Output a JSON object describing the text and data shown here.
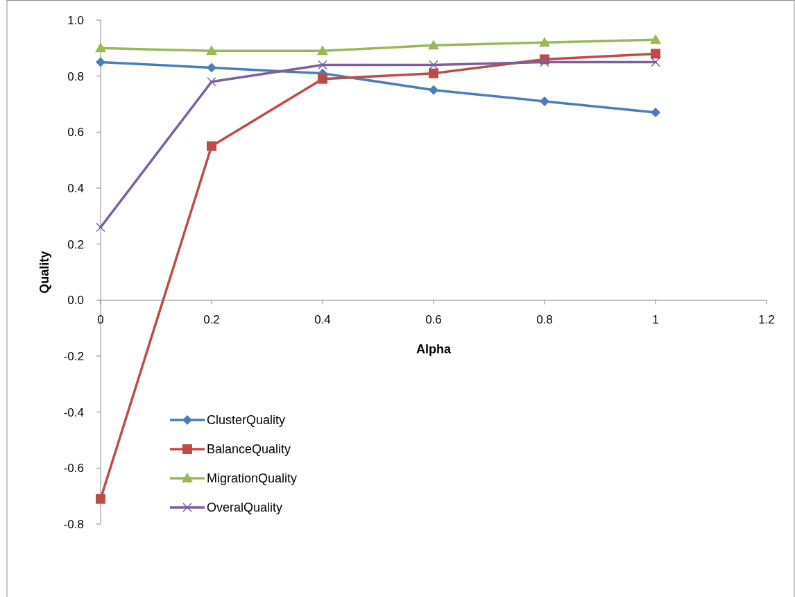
{
  "chart_data": {
    "type": "line",
    "xlabel": "Alpha",
    "ylabel": "Quality",
    "x": [
      0,
      0.2,
      0.4,
      0.6,
      0.8,
      1
    ],
    "series": [
      {
        "name": "ClusterQuality",
        "color": "#4a7ebb",
        "marker": "diamond",
        "values": [
          0.85,
          0.83,
          0.81,
          0.75,
          0.71,
          0.67
        ]
      },
      {
        "name": "BalanceQuality",
        "color": "#be4b48",
        "marker": "square",
        "values": [
          -0.71,
          0.55,
          0.79,
          0.81,
          0.86,
          0.88
        ]
      },
      {
        "name": "MigrationQuality",
        "color": "#98b954",
        "marker": "triangle",
        "values": [
          0.9,
          0.89,
          0.89,
          0.91,
          0.92,
          0.93
        ]
      },
      {
        "name": "OveralQuality",
        "color": "#7d5fa0",
        "marker": "cross",
        "values": [
          0.26,
          0.78,
          0.84,
          0.84,
          0.85,
          0.85
        ]
      }
    ],
    "xlim": [
      0,
      1.2
    ],
    "xticks": [
      0,
      0.2,
      0.4,
      0.6,
      0.8,
      1,
      1.2
    ],
    "ylim": [
      -0.8,
      1.0
    ],
    "yticks": [
      {
        "value": -0.8,
        "label": "-0.8"
      },
      {
        "value": -0.6,
        "label": "-0.6"
      },
      {
        "value": -0.4,
        "label": "-0.4"
      },
      {
        "value": -0.2,
        "label": "-0.2"
      },
      {
        "value": 0,
        "label": "0.0"
      },
      {
        "value": 0.2,
        "label": "0.2"
      },
      {
        "value": 0.4,
        "label": "0.4"
      },
      {
        "value": 0.6,
        "label": "0.6"
      },
      {
        "value": 0.8,
        "label": "0.8"
      },
      {
        "value": 1.0,
        "label": "1.0"
      }
    ],
    "grid": false,
    "legend": "bottom left",
    "line_style": "solid"
  }
}
